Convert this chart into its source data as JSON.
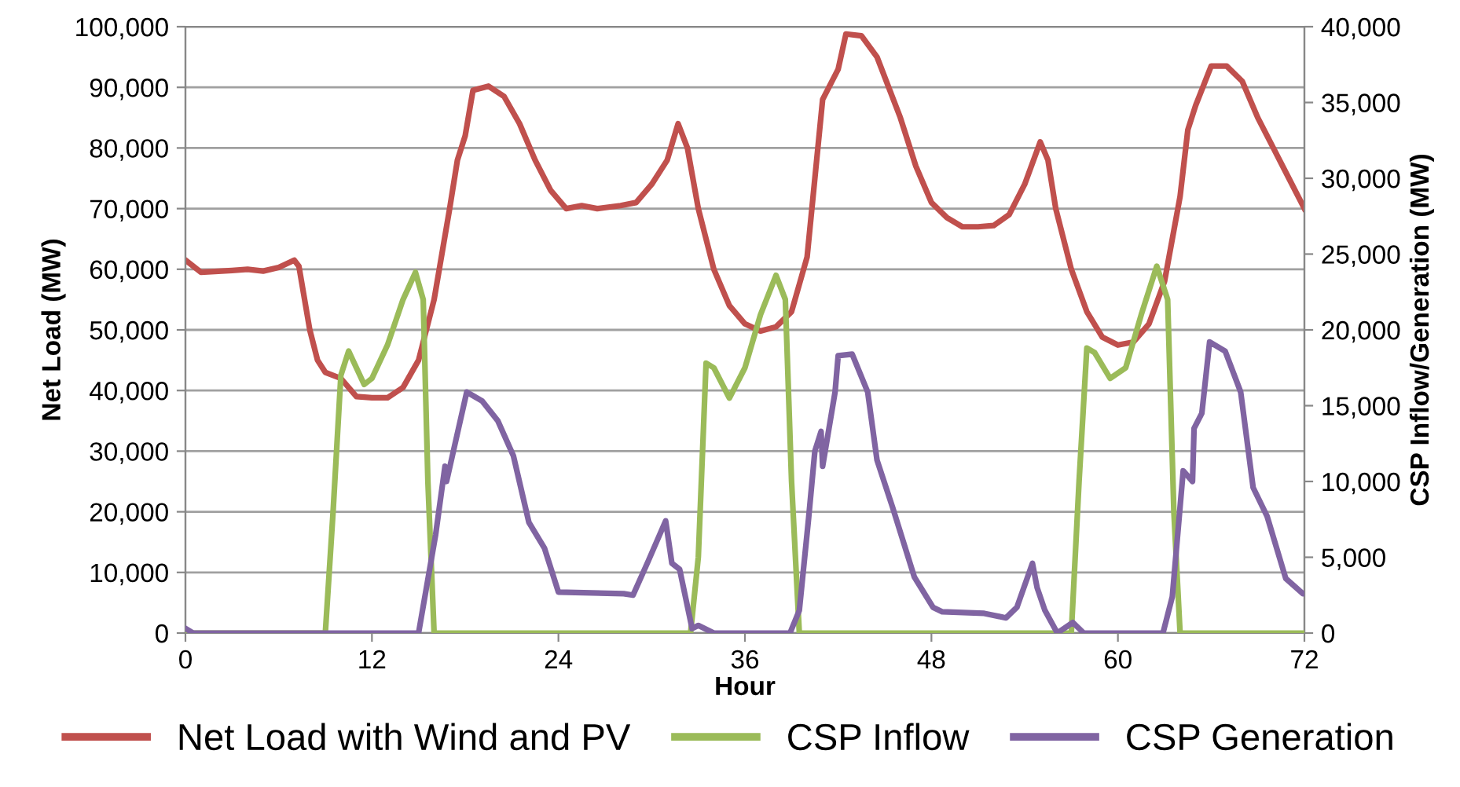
{
  "chart_data": {
    "type": "line",
    "xlabel": "Hour",
    "ylabel": "Net Load (MW)",
    "y2label": "CSP Inflow/Generation (MW)",
    "xlim": [
      0,
      72
    ],
    "xticks": [
      0,
      12,
      24,
      36,
      48,
      60,
      72
    ],
    "ylim": [
      0,
      100000
    ],
    "yticks": [
      {
        "value": 0,
        "label": "0"
      },
      {
        "value": 10000,
        "label": "10,000"
      },
      {
        "value": 20000,
        "label": "20,000"
      },
      {
        "value": 30000,
        "label": "30,000"
      },
      {
        "value": 40000,
        "label": "40,000"
      },
      {
        "value": 50000,
        "label": "50,000"
      },
      {
        "value": 60000,
        "label": "60,000"
      },
      {
        "value": 70000,
        "label": "70,000"
      },
      {
        "value": 80000,
        "label": "80,000"
      },
      {
        "value": 90000,
        "label": "90,000"
      },
      {
        "value": 100000,
        "label": "100,000"
      }
    ],
    "y2lim": [
      0,
      40000
    ],
    "y2ticks": [
      {
        "value": 0,
        "label": "0"
      },
      {
        "value": 5000,
        "label": "5,000"
      },
      {
        "value": 10000,
        "label": "10,000"
      },
      {
        "value": 15000,
        "label": "15,000"
      },
      {
        "value": 20000,
        "label": "20,000"
      },
      {
        "value": 25000,
        "label": "25,000"
      },
      {
        "value": 30000,
        "label": "30,000"
      },
      {
        "value": 35000,
        "label": "35,000"
      },
      {
        "value": 40000,
        "label": "40,000"
      }
    ],
    "grid": "y",
    "legend": "bottom",
    "marker": "none",
    "line_style": "solid",
    "series": [
      {
        "name": "Net Load with Wind and PV",
        "color": "#c0504d",
        "x": [
          0,
          1,
          3,
          4,
          5,
          6,
          7,
          7.3,
          8,
          8.5,
          9,
          10,
          11,
          12,
          13,
          14,
          15,
          16,
          17,
          17.5,
          18,
          18.5,
          19.5,
          20.5,
          21.5,
          22.5,
          23.5,
          24.5,
          25.5,
          26.5,
          28,
          29,
          30,
          31,
          31.7,
          32.3,
          33,
          34,
          35,
          36,
          37,
          38,
          39,
          40,
          40.5,
          41,
          42,
          42.5,
          43.5,
          44.5,
          46,
          47,
          48,
          49,
          50,
          51,
          52,
          53,
          54,
          55,
          55.5,
          56,
          57,
          58,
          59,
          60,
          61,
          62,
          63,
          64,
          64.5,
          65,
          66,
          67,
          68,
          69,
          70,
          71,
          72
        ],
        "values": [
          61500,
          59500,
          59800,
          60000,
          59700,
          60300,
          61500,
          60500,
          50000,
          45000,
          43000,
          42000,
          39000,
          38800,
          38800,
          40500,
          45000,
          55000,
          70000,
          78000,
          82000,
          89500,
          90200,
          88500,
          84000,
          78000,
          73000,
          70000,
          70500,
          70000,
          70500,
          71000,
          74000,
          78000,
          84000,
          80000,
          70000,
          60000,
          54000,
          51000,
          49800,
          50500,
          53000,
          62000,
          75000,
          88000,
          93000,
          98800,
          98500,
          95000,
          85000,
          77000,
          71000,
          68500,
          67000,
          67000,
          67200,
          69000,
          74000,
          81000,
          78000,
          70000,
          60000,
          53000,
          48800,
          47500,
          48000,
          51000,
          58000,
          72000,
          83000,
          87000,
          93500,
          93500,
          91000,
          85000,
          80000,
          75000,
          70000
        ]
      },
      {
        "name": "CSP Inflow",
        "color": "#9bbb59",
        "axis": "y2",
        "x": [
          0,
          9,
          9.5,
          10,
          10.5,
          11.5,
          12,
          13,
          14,
          14.8,
          15.3,
          15.6,
          16,
          32.5,
          33,
          33.5,
          34,
          35,
          36,
          37,
          38,
          38.6,
          39,
          39.5,
          57,
          57.5,
          58,
          58.5,
          59.5,
          60.5,
          61.5,
          62.5,
          63.2,
          63.6,
          64,
          72
        ],
        "values": [
          0,
          0,
          8000,
          17000,
          18600,
          16400,
          16800,
          19000,
          22000,
          23800,
          22000,
          10000,
          0,
          0,
          5000,
          17800,
          17500,
          15500,
          17500,
          21000,
          23600,
          22000,
          10000,
          0,
          0,
          10000,
          18800,
          18500,
          16800,
          17500,
          21000,
          24200,
          22000,
          8000,
          0,
          0
        ]
      },
      {
        "name": "CSP Generation",
        "color": "#8064a2",
        "axis": "y2",
        "x": [
          0,
          0.5,
          15,
          16.1,
          16.7,
          16.8,
          18.1,
          19.1,
          20.1,
          21.1,
          22.1,
          23.1,
          24,
          28.2,
          28.8,
          29.8,
          30.9,
          31.3,
          31.8,
          32.6,
          33,
          34,
          38.9,
          39.5,
          40.1,
          40.5,
          40.9,
          41,
          41.8,
          42,
          42.9,
          43.9,
          44.5,
          45.5,
          46.9,
          48.1,
          48.7,
          51.4,
          52.8,
          53.5,
          54.5,
          54.8,
          55.3,
          56.1,
          57.1,
          57.8,
          62.9,
          63.5,
          64.2,
          64.8,
          64.9,
          65.4,
          65.9,
          66.9,
          67.9,
          68.7,
          69.6,
          70.8,
          71.9,
          72
        ],
        "values": [
          300,
          0,
          0,
          6500,
          11000,
          10000,
          15900,
          15300,
          14000,
          11700,
          7300,
          5600,
          2700,
          2600,
          2500,
          4800,
          7400,
          4600,
          4200,
          300,
          500,
          0,
          0,
          1500,
          7600,
          12000,
          13300,
          11000,
          15900,
          18300,
          18400,
          15900,
          11400,
          8300,
          3700,
          1700,
          1400,
          1300,
          1000,
          1700,
          4600,
          3000,
          1500,
          0,
          700,
          0,
          0,
          2400,
          10700,
          10000,
          13500,
          14500,
          19200,
          18600,
          15900,
          9600,
          7700,
          3600,
          2600,
          2600
        ]
      }
    ]
  }
}
